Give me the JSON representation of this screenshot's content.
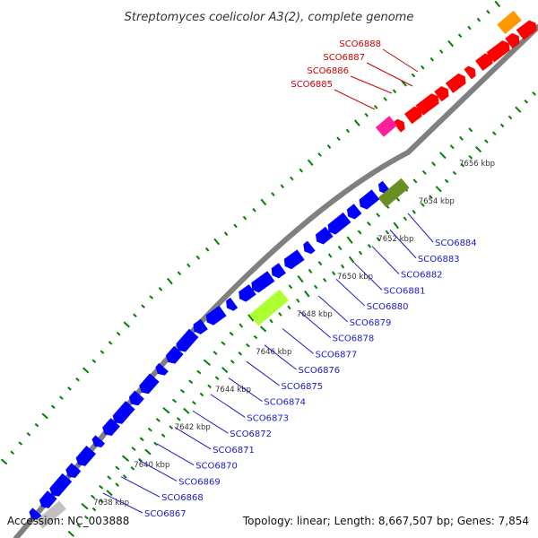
{
  "title": "Streptomyces coelicolor A3(2), complete genome",
  "accession": "Accession: NC_003888",
  "summary": "Topology: linear; Length: 8,667,507 bp; Genes: 7,854",
  "colors": {
    "backbone": "#808080",
    "forward_gene": "#ff0000",
    "reverse_gene": "#0000ff",
    "tick": "#008000",
    "forward_label": "#cc0000",
    "reverse_label": "#1a1acc",
    "features": [
      "#ff9900",
      "#ff1f9a",
      "#6b8e23",
      "#adff2f",
      "#c0c0c0"
    ]
  },
  "kbp_labels": [
    "7638 kbp",
    "7640 kbp",
    "7642 kbp",
    "7644 kbp",
    "7646 kbp",
    "7648 kbp",
    "7650 kbp",
    "7652 kbp",
    "7654 kbp",
    "7656 kbp"
  ],
  "forward_labels": [
    "SCO6888",
    "SCO6887",
    "SCO6886",
    "SCO6885"
  ],
  "reverse_labels": [
    "SCO6884",
    "SCO6883",
    "SCO6882",
    "SCO6881",
    "SCO6880",
    "SCO6879",
    "SCO6878",
    "SCO6877",
    "SCO6876",
    "SCO6875",
    "SCO6874",
    "SCO6873",
    "SCO6872",
    "SCO6871",
    "SCO6870",
    "SCO6869",
    "SCO6868",
    "SCO6867"
  ]
}
